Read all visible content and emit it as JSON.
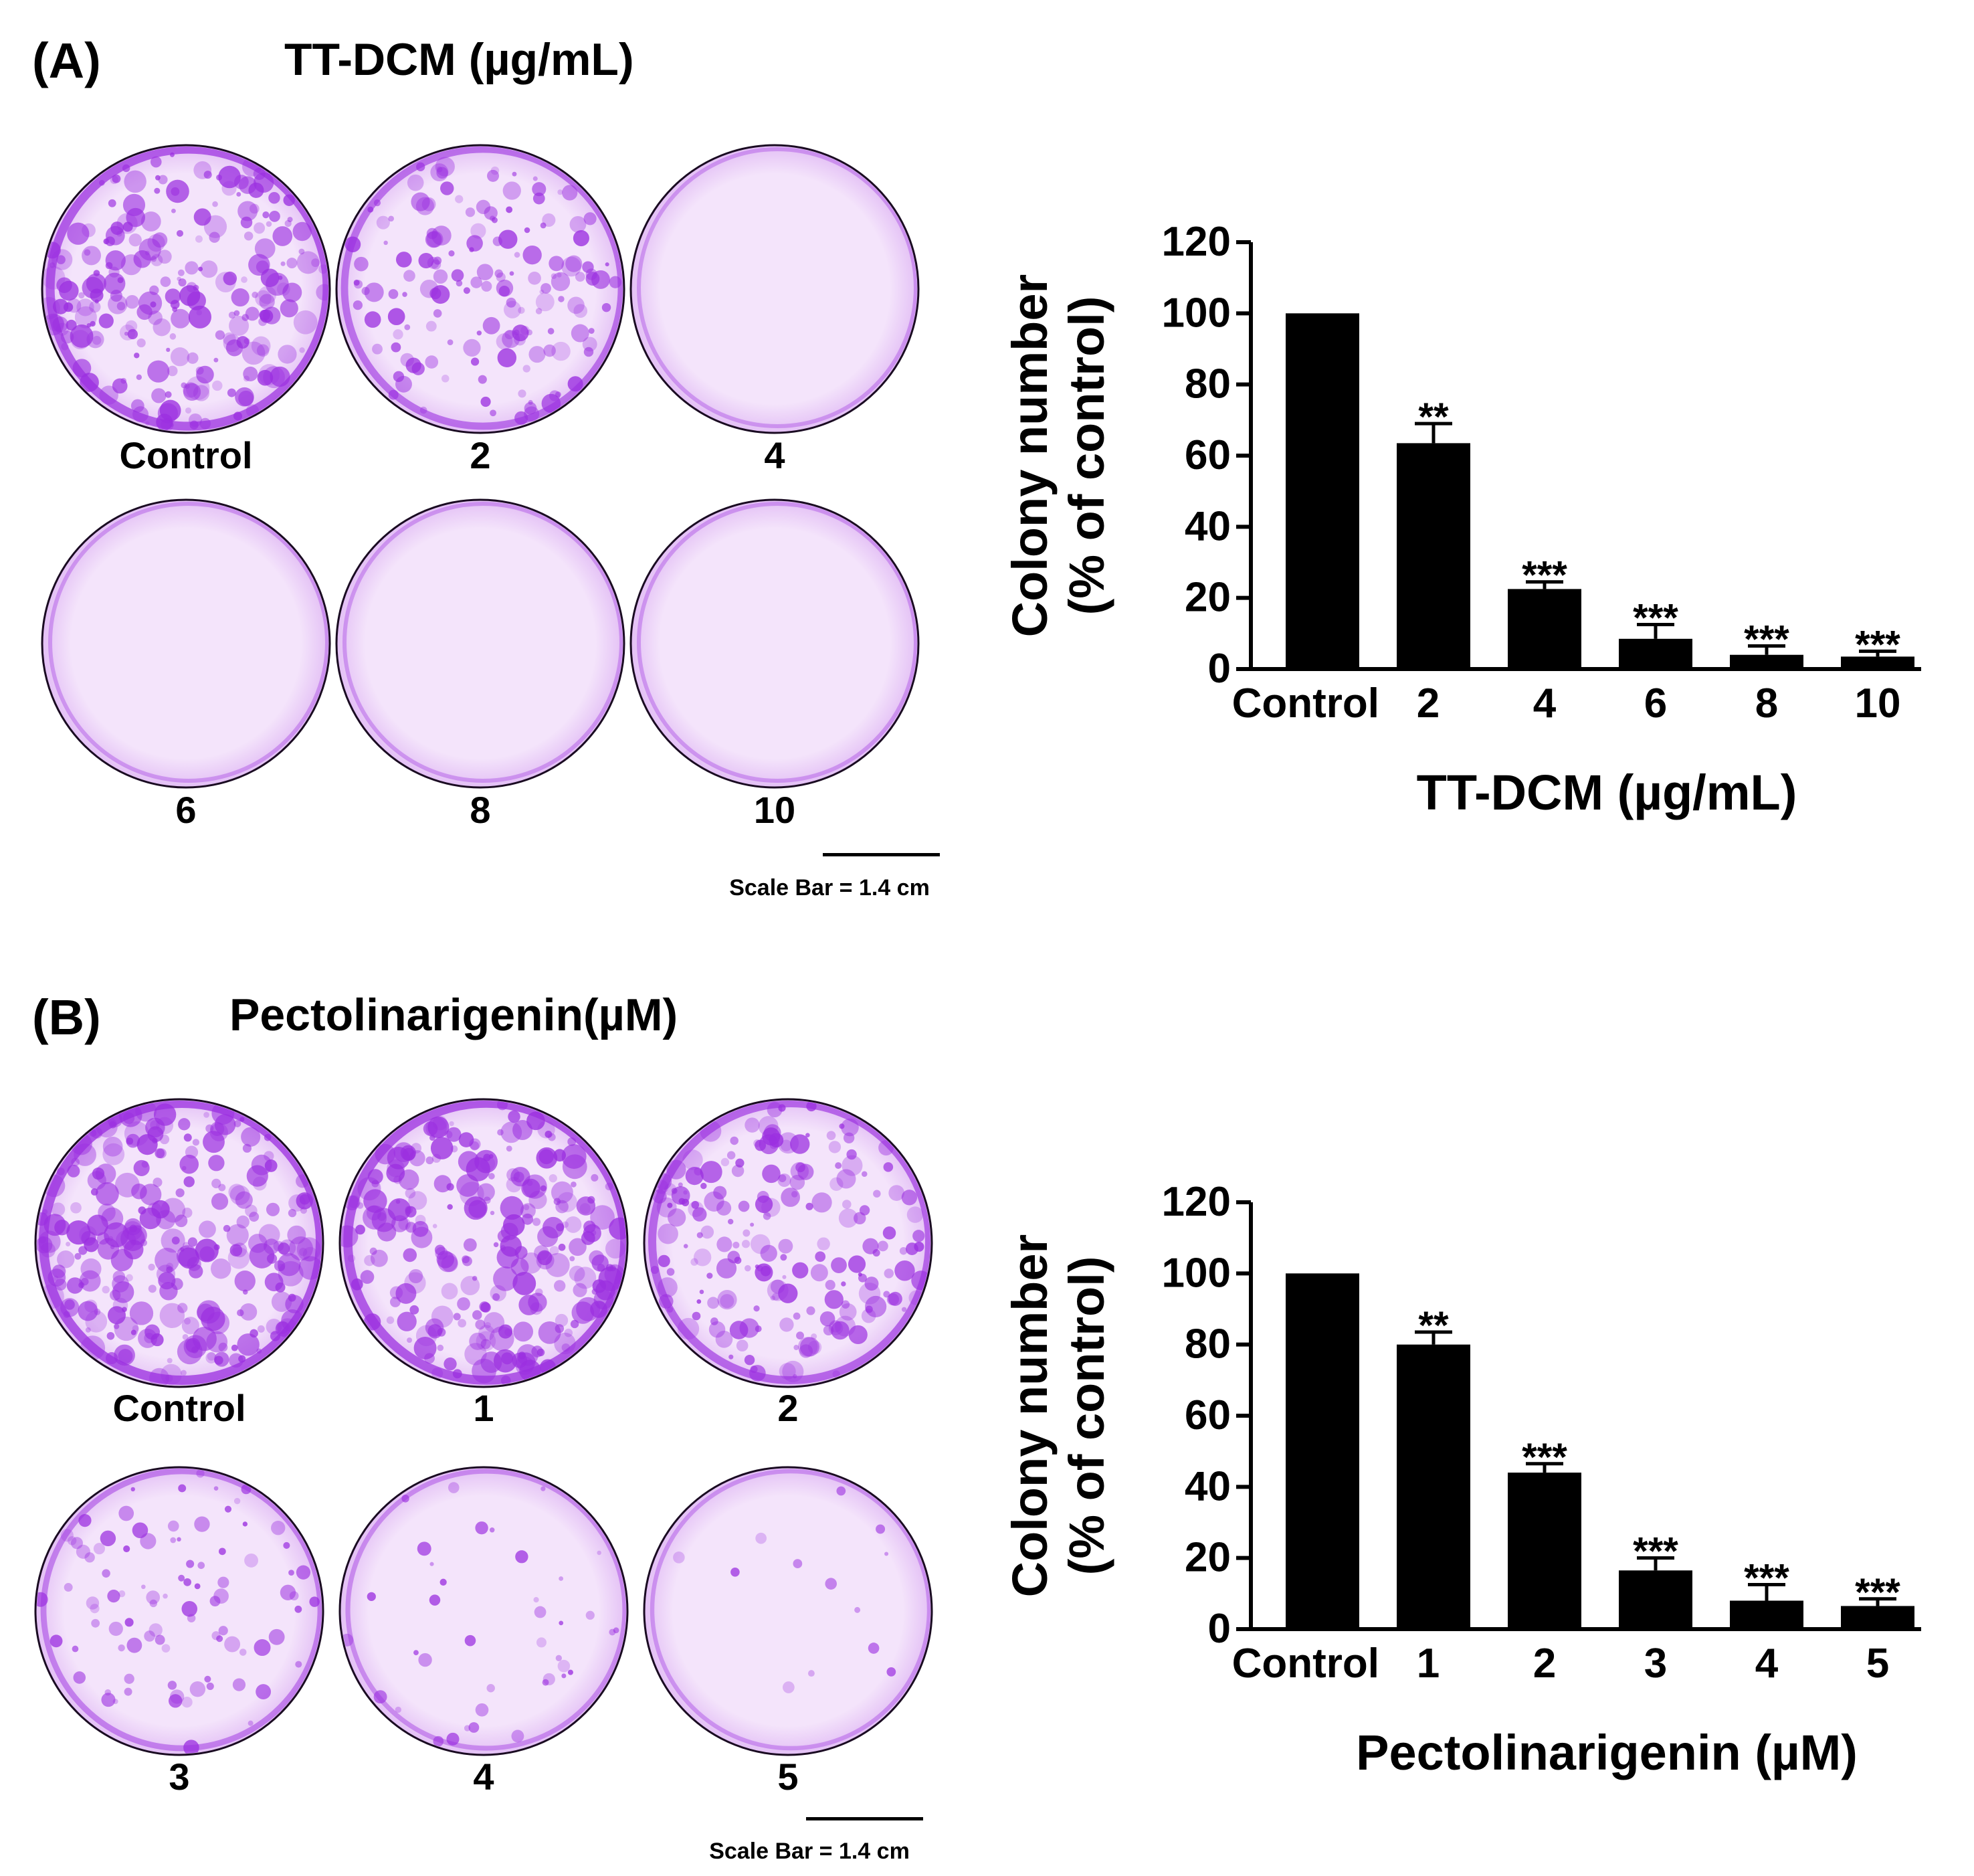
{
  "panels": [
    {
      "label": "(A)",
      "title": "TT-DCM (µg/mL)",
      "dish_labels": [
        "Control",
        "2",
        "4",
        "6",
        "8",
        "10"
      ],
      "dish_colony_density": [
        0.9,
        0.6,
        0.0,
        0.0,
        0.0,
        0.0
      ],
      "scale_bar": "Scale Bar = 1.4 cm"
    },
    {
      "label": "(B)",
      "title": "Pectolinarigenin(µM)",
      "dish_labels": [
        "Control",
        "1",
        "2",
        "3",
        "4",
        "5"
      ],
      "dish_colony_density": [
        1.0,
        0.95,
        0.75,
        0.35,
        0.15,
        0.05
      ],
      "scale_bar": "Scale Bar = 1.4 cm"
    }
  ],
  "colors": {
    "stain": "#9b2fe0",
    "dish_bg": "#f4e4fb",
    "bar": "#000000"
  },
  "chart_data": [
    {
      "type": "bar",
      "categories": [
        "Control",
        "2",
        "4",
        "6",
        "8",
        "10"
      ],
      "values": [
        100,
        63.5,
        22.5,
        8.5,
        4,
        3.5
      ],
      "errors": [
        0,
        5.5,
        2,
        4,
        2.5,
        1.5
      ],
      "significance": [
        "",
        "**",
        "***",
        "***",
        "***",
        "***"
      ],
      "xlabel": "TT-DCM (µg/mL)",
      "ylabel": "Colony number",
      "ylabel2": "(% of control)",
      "ylim": [
        0,
        120
      ],
      "yticks": [
        "0",
        "20",
        "40",
        "60",
        "80",
        "100",
        "120"
      ],
      "grid": false
    },
    {
      "type": "bar",
      "categories": [
        "Control",
        "1",
        "2",
        "3",
        "4",
        "5"
      ],
      "values": [
        100,
        80,
        44,
        16.5,
        8,
        6.5
      ],
      "errors": [
        0,
        3.5,
        2.5,
        3.5,
        4.5,
        2
      ],
      "significance": [
        "",
        "**",
        "***",
        "***",
        "***",
        "***"
      ],
      "xlabel": "Pectolinarigenin (µM)",
      "ylabel": "Colony number",
      "ylabel2": "(% of control)",
      "ylim": [
        0,
        120
      ],
      "yticks": [
        "0",
        "20",
        "40",
        "60",
        "80",
        "100",
        "120"
      ],
      "grid": false
    }
  ]
}
